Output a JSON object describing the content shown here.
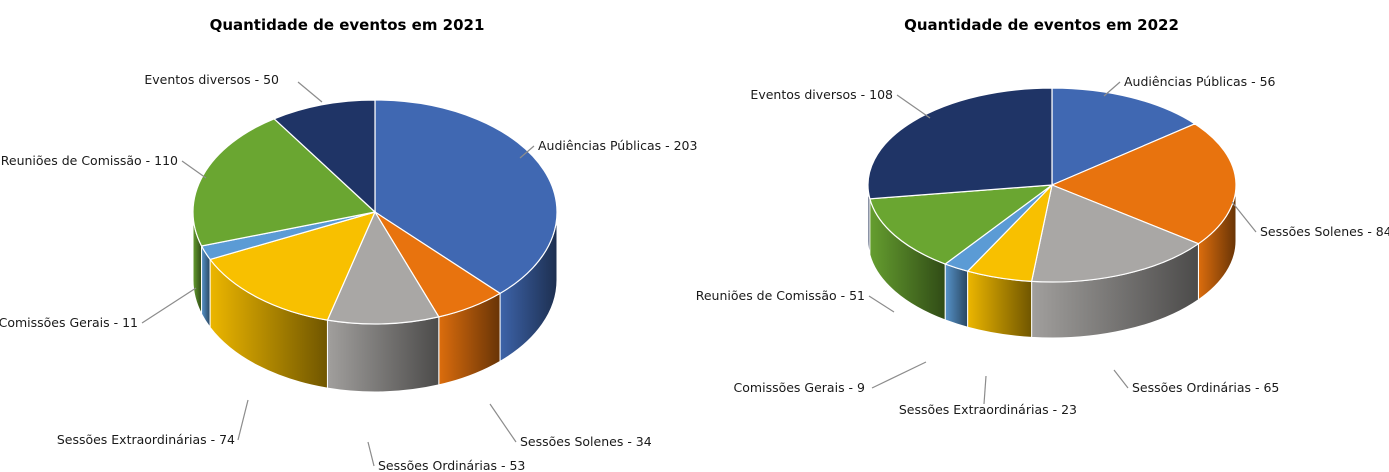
{
  "chart_data": [
    {
      "type": "pie",
      "title": "Quantidade de eventos em 2021",
      "slices": [
        {
          "label": "Audiências Públicas - 203",
          "category": "Audiências Públicas",
          "value": 203,
          "color": "#4068B2"
        },
        {
          "label": "Sessões Solenes - 34",
          "category": "Sessões Solenes",
          "value": 34,
          "color": "#E8730E"
        },
        {
          "label": "Sessões Ordinárias - 53",
          "category": "Sessões Ordinárias",
          "value": 53,
          "color": "#A9A7A5"
        },
        {
          "label": "Sessões Extraordinárias - 74",
          "category": "Sessões Extraordinárias",
          "value": 74,
          "color": "#F8C000"
        },
        {
          "label": "Comissões Gerais - 11",
          "category": "Comissões Gerais",
          "value": 11,
          "color": "#5B9BD5"
        },
        {
          "label": "Reuniões de Comissão - 110",
          "category": "Reuniões de Comissão",
          "value": 110,
          "color": "#6AA631"
        },
        {
          "label": "Eventos diversos - 50",
          "category": "Eventos diversos",
          "value": 50,
          "color": "#1F3466"
        }
      ]
    },
    {
      "type": "pie",
      "title": "Quantidade de eventos em 2022",
      "slices": [
        {
          "label": "Audiências Públicas - 56",
          "category": "Audiências Públicas",
          "value": 56,
          "color": "#4068B2"
        },
        {
          "label": "Sessões Solenes - 84",
          "category": "Sessões Solenes",
          "value": 84,
          "color": "#E8730E"
        },
        {
          "label": "Sessões Ordinárias - 65",
          "category": "Sessões Ordinárias",
          "value": 65,
          "color": "#A9A7A5"
        },
        {
          "label": "Sessões Extraordinárias - 23",
          "category": "Sessões Extraordinárias",
          "value": 23,
          "color": "#F8C000"
        },
        {
          "label": "Comissões Gerais - 9",
          "category": "Comissões Gerais",
          "value": 9,
          "color": "#5B9BD5"
        },
        {
          "label": "Reuniões de Comissão - 51",
          "category": "Reuniões de Comissão",
          "value": 51,
          "color": "#6AA631"
        },
        {
          "label": "Eventos diversos - 108",
          "category": "Eventos diversos",
          "value": 108,
          "color": "#1F3466"
        }
      ]
    }
  ]
}
